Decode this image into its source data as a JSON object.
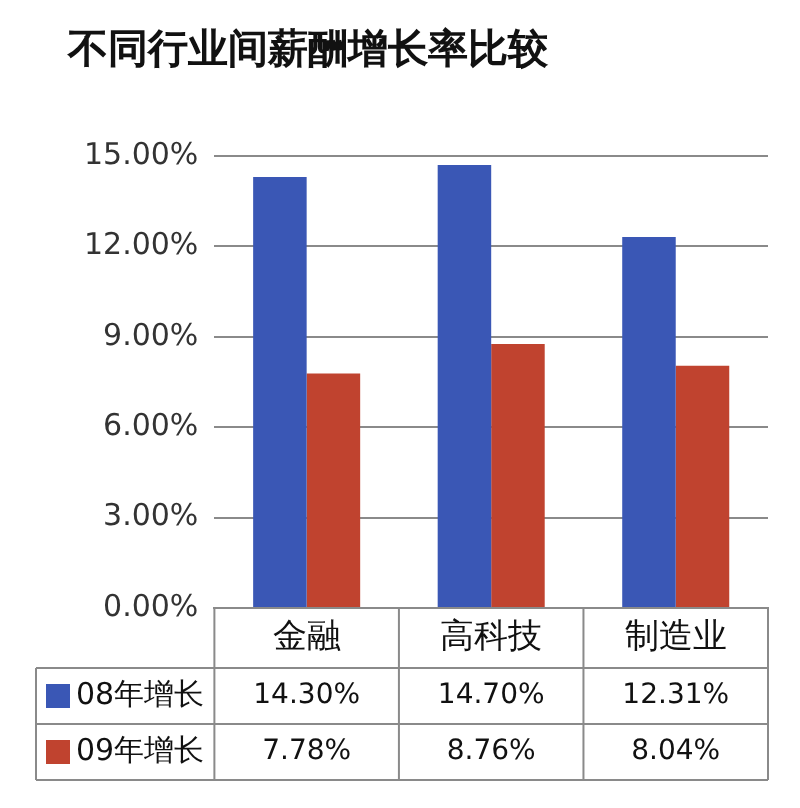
{
  "chart_data": {
    "type": "bar",
    "title": "不同行业间薪酬增长率比较",
    "categories": [
      "金融",
      "高科技",
      "制造业"
    ],
    "series": [
      {
        "name": "08年增长",
        "color": "#3a57b5",
        "values": [
          14.3,
          14.7,
          12.31
        ],
        "value_labels": [
          "14.30%",
          "14.70%",
          "12.31%"
        ]
      },
      {
        "name": "09年增长",
        "color": "#c0432f",
        "values": [
          7.78,
          8.76,
          8.04
        ],
        "value_labels": [
          "7.78%",
          "8.76%",
          "8.04%"
        ]
      }
    ],
    "ylim": [
      0,
      15
    ],
    "yticks": [
      {
        "value": 0,
        "label": "0.00%"
      },
      {
        "value": 3,
        "label": "3.00%"
      },
      {
        "value": 6,
        "label": "6.00%"
      },
      {
        "value": 9,
        "label": "9.00%"
      },
      {
        "value": 12,
        "label": "12.00%"
      },
      {
        "value": 15,
        "label": "15.00%"
      }
    ],
    "grid": "y",
    "legend": "bottom"
  }
}
